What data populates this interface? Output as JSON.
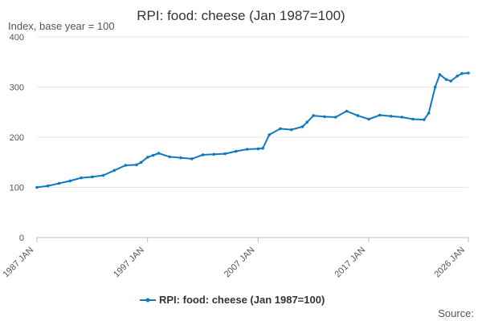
{
  "chart_data": {
    "type": "line",
    "title": "RPI: food: cheese (Jan 1987=100)",
    "ylabel": "Index, base year = 100",
    "source_label": "Source:",
    "ylim": [
      0,
      400
    ],
    "yticks": [
      "0",
      "100",
      "200",
      "300",
      "400"
    ],
    "xlim": [
      "1987-01",
      "2026-01"
    ],
    "xticks": [
      {
        "date": "1987-01",
        "label": "1987 JAN"
      },
      {
        "date": "1997-01",
        "label": "1997 JAN"
      },
      {
        "date": "2007-01",
        "label": "2007 JAN"
      },
      {
        "date": "2017-01",
        "label": "2017 JAN"
      },
      {
        "date": "2026-01",
        "label": "2026 JAN"
      }
    ],
    "grid": true,
    "legend_position": "bottom",
    "color": "#0f7ac0",
    "series": [
      {
        "name": "RPI: food: cheese (Jan 1987=100)",
        "points": [
          [
            "1987-01",
            100
          ],
          [
            "1988-01",
            103
          ],
          [
            "1989-01",
            108
          ],
          [
            "1990-01",
            113
          ],
          [
            "1991-01",
            119
          ],
          [
            "1992-01",
            121
          ],
          [
            "1993-01",
            124
          ],
          [
            "1994-01",
            134
          ],
          [
            "1995-01",
            144
          ],
          [
            "1996-01",
            145
          ],
          [
            "1996-06",
            150
          ],
          [
            "1997-01",
            160
          ],
          [
            "1997-07",
            164
          ],
          [
            "1998-01",
            168
          ],
          [
            "1999-01",
            161
          ],
          [
            "2000-01",
            159
          ],
          [
            "2001-01",
            157
          ],
          [
            "2002-01",
            165
          ],
          [
            "2003-01",
            166
          ],
          [
            "2004-01",
            167
          ],
          [
            "2005-01",
            172
          ],
          [
            "2006-01",
            176
          ],
          [
            "2007-01",
            177
          ],
          [
            "2007-06",
            178
          ],
          [
            "2008-01",
            205
          ],
          [
            "2009-01",
            217
          ],
          [
            "2010-01",
            215
          ],
          [
            "2011-01",
            221
          ],
          [
            "2011-06",
            230
          ],
          [
            "2012-01",
            243
          ],
          [
            "2013-01",
            241
          ],
          [
            "2014-01",
            240
          ],
          [
            "2015-01",
            252
          ],
          [
            "2016-01",
            243
          ],
          [
            "2017-01",
            236
          ],
          [
            "2018-01",
            244
          ],
          [
            "2019-01",
            242
          ],
          [
            "2020-01",
            240
          ],
          [
            "2021-01",
            236
          ],
          [
            "2022-01",
            235
          ],
          [
            "2022-06",
            248
          ],
          [
            "2023-01",
            300
          ],
          [
            "2023-06",
            325
          ],
          [
            "2024-01",
            315
          ],
          [
            "2024-06",
            312
          ],
          [
            "2025-01",
            322
          ],
          [
            "2025-06",
            327
          ],
          [
            "2026-01",
            328
          ]
        ]
      }
    ]
  }
}
